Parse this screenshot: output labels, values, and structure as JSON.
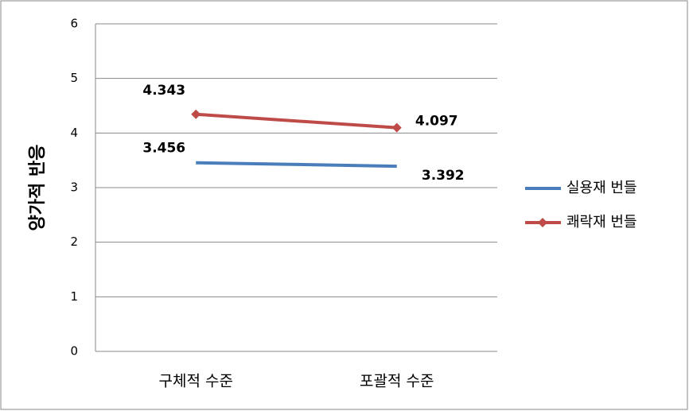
{
  "chart_data": {
    "type": "line",
    "y_label": "양가적 반응",
    "categories": [
      "구체적 수준",
      "포괄적 수준"
    ],
    "series": [
      {
        "name": "실용재 번들",
        "color": "#4a7ebb",
        "marker": "none",
        "values": [
          3.456,
          3.392
        ]
      },
      {
        "name": "쾌락재 번들",
        "color": "#be4b48",
        "marker": "diamond",
        "values": [
          4.343,
          4.097
        ]
      }
    ],
    "ylim": [
      0,
      6
    ],
    "yticks": [
      0,
      1,
      2,
      3,
      4,
      5,
      6
    ],
    "grid": true,
    "legend": "right"
  }
}
